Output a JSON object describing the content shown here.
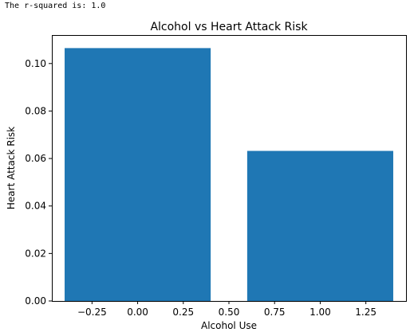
{
  "output": {
    "text": "The r-squared is: 1.0"
  },
  "chart_data": {
    "type": "bar",
    "title": "Alcohol vs Heart Attack Risk",
    "xlabel": "Alcohol Use",
    "ylabel": "Heart Attack Risk",
    "x": [
      0,
      1
    ],
    "values": [
      0.1065,
      0.0632
    ],
    "bar_width": 0.8,
    "bar_color": "#1f77b4",
    "xlim": [
      -0.47,
      1.47
    ],
    "ylim": [
      0,
      0.112
    ],
    "xticks": [
      -0.25,
      0,
      0.25,
      0.5,
      0.75,
      1.0,
      1.25
    ],
    "xtick_labels": [
      "−0.25",
      "0.00",
      "0.25",
      "0.50",
      "0.75",
      "1.00",
      "1.25"
    ],
    "yticks": [
      0,
      0.02,
      0.04,
      0.06,
      0.08,
      0.1
    ],
    "ytick_labels": [
      "0.00",
      "0.02",
      "0.04",
      "0.06",
      "0.08",
      "0.10"
    ],
    "grid": false,
    "legend": "none"
  }
}
